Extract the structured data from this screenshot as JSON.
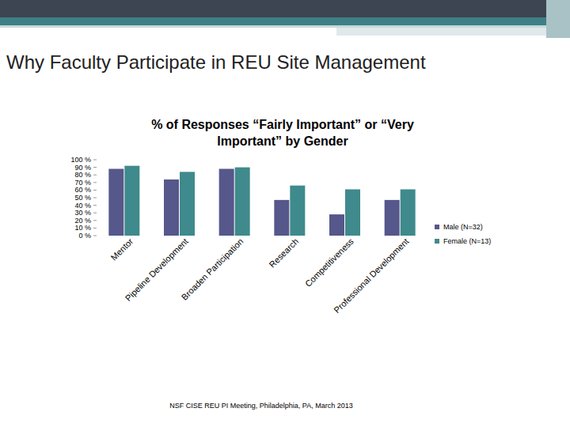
{
  "slide": {
    "title": "Why Faculty Participate in REU Site Management",
    "footer": "NSF CISE REU PI Meeting, Philadelphia, PA, March 2013"
  },
  "chart_data": {
    "type": "bar",
    "title": "% of Responses “Fairly Important” or “Very Important” by Gender",
    "categories": [
      "Mentor",
      "Pipeline Development",
      "Broaden Participation",
      "Research",
      "Competitiveness",
      "Professional Development"
    ],
    "series": [
      {
        "name": "Male (N=32)",
        "color": "#56578a",
        "values": [
          88,
          74,
          88,
          47,
          28,
          47
        ]
      },
      {
        "name": "Female (N=13)",
        "color": "#3f8a8c",
        "values": [
          92,
          84,
          90,
          66,
          61,
          61
        ]
      }
    ],
    "ylim": [
      0,
      100
    ],
    "yticks": [
      {
        "value": 0,
        "label": "0 %"
      },
      {
        "value": 10,
        "label": "10 %"
      },
      {
        "value": 20,
        "label": "20 %"
      },
      {
        "value": 30,
        "label": "30 %"
      },
      {
        "value": 40,
        "label": "40 %"
      },
      {
        "value": 50,
        "label": "50 %"
      },
      {
        "value": 60,
        "label": "60 %"
      },
      {
        "value": 70,
        "label": "70 %"
      },
      {
        "value": 80,
        "label": "80 %"
      },
      {
        "value": 90,
        "label": "90 %"
      },
      {
        "value": 100,
        "label": "100 %"
      }
    ],
    "grid": false,
    "legend": "right"
  }
}
